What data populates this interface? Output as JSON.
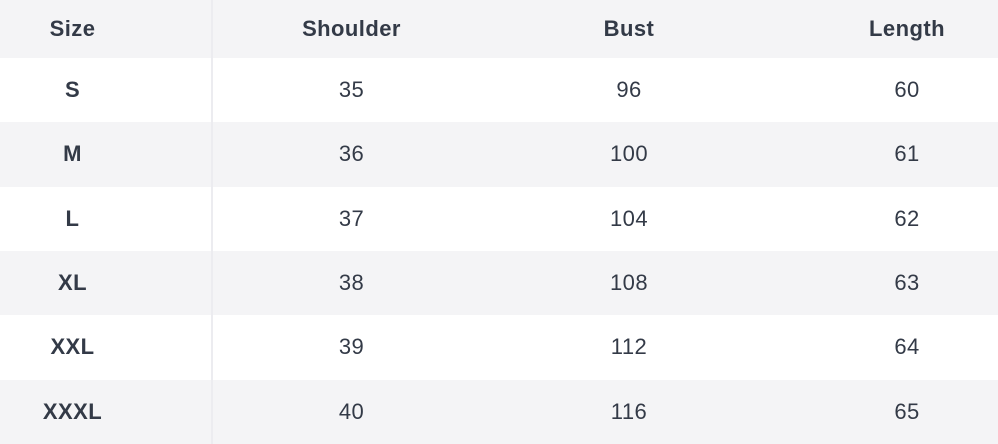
{
  "chart_data": {
    "type": "table",
    "columns": [
      "Size",
      "Shoulder",
      "Bust",
      "Length"
    ],
    "rows": [
      [
        "S",
        "35",
        "96",
        "60"
      ],
      [
        "M",
        "36",
        "100",
        "61"
      ],
      [
        "L",
        "37",
        "104",
        "62"
      ],
      [
        "XL",
        "38",
        "108",
        "63"
      ],
      [
        "XXL",
        "39",
        "112",
        "64"
      ],
      [
        "XXXL",
        "40",
        "116",
        "65"
      ]
    ],
    "layout": {
      "header_shaded": true,
      "striped_rows": true,
      "first_column_divider": true,
      "grid": "off"
    }
  },
  "colors": {
    "header_bg": "#f4f4f6",
    "stripe_bg": "#f4f4f6",
    "row_bg": "#ffffff",
    "text": "#333a47",
    "divider": "#ececf0"
  }
}
